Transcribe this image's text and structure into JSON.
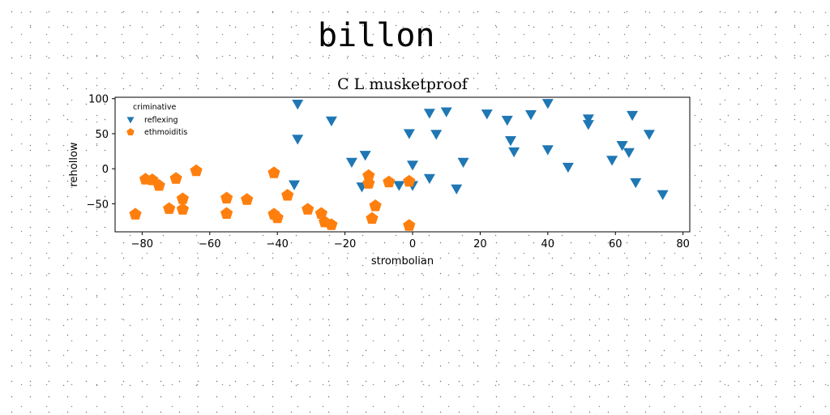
{
  "page": {
    "title": "billon"
  },
  "chart_data": {
    "type": "scatter",
    "title": "C L musketproof",
    "xlabel": "strombolian",
    "ylabel": "rehollow",
    "xlim": [
      -88,
      82
    ],
    "ylim": [
      -90,
      102
    ],
    "xticks": [
      -80,
      -60,
      -40,
      -20,
      0,
      20,
      40,
      60,
      80
    ],
    "yticks": [
      100,
      50,
      0,
      -50
    ],
    "grid": false,
    "legend": {
      "title": "criminative",
      "position": "top-left"
    },
    "series": [
      {
        "name": "reflexing",
        "color": "#1f77b4",
        "marker": "triangle-down",
        "points": [
          [
            -34,
            92
          ],
          [
            -34,
            42
          ],
          [
            -24,
            68
          ],
          [
            -35,
            -23
          ],
          [
            -18,
            9
          ],
          [
            -14,
            19
          ],
          [
            -15,
            -26
          ],
          [
            -4,
            -24
          ],
          [
            -1,
            50
          ],
          [
            0,
            5
          ],
          [
            0,
            -24
          ],
          [
            5,
            79
          ],
          [
            5,
            -14
          ],
          [
            7,
            49
          ],
          [
            10,
            81
          ],
          [
            13,
            -29
          ],
          [
            15,
            9
          ],
          [
            22,
            78
          ],
          [
            28,
            69
          ],
          [
            29,
            40
          ],
          [
            30,
            24
          ],
          [
            35,
            77
          ],
          [
            40,
            93
          ],
          [
            40,
            27
          ],
          [
            46,
            2
          ],
          [
            52,
            71
          ],
          [
            52,
            63
          ],
          [
            59,
            12
          ],
          [
            62,
            33
          ],
          [
            64,
            23
          ],
          [
            65,
            76
          ],
          [
            66,
            -20
          ],
          [
            70,
            49
          ],
          [
            74,
            -37
          ]
        ]
      },
      {
        "name": "ethmoiditis",
        "color": "#ff7f0e",
        "marker": "pentagon",
        "points": [
          [
            -82,
            -65
          ],
          [
            -79,
            -15
          ],
          [
            -77,
            -16
          ],
          [
            -75,
            -24
          ],
          [
            -72,
            -57
          ],
          [
            -70,
            -14
          ],
          [
            -68,
            -43
          ],
          [
            -68,
            -58
          ],
          [
            -64,
            -3
          ],
          [
            -55,
            -64
          ],
          [
            -55,
            -42
          ],
          [
            -49,
            -44
          ],
          [
            -41,
            -6
          ],
          [
            -41,
            -65
          ],
          [
            -40,
            -70
          ],
          [
            -37,
            -38
          ],
          [
            -31,
            -58
          ],
          [
            -27,
            -64
          ],
          [
            -26,
            -76
          ],
          [
            -24,
            -80
          ],
          [
            -13,
            -10
          ],
          [
            -13,
            -21
          ],
          [
            -12,
            -71
          ],
          [
            -11,
            -53
          ],
          [
            -7,
            -19
          ],
          [
            -1,
            -18
          ],
          [
            -1,
            -81
          ]
        ]
      }
    ]
  }
}
